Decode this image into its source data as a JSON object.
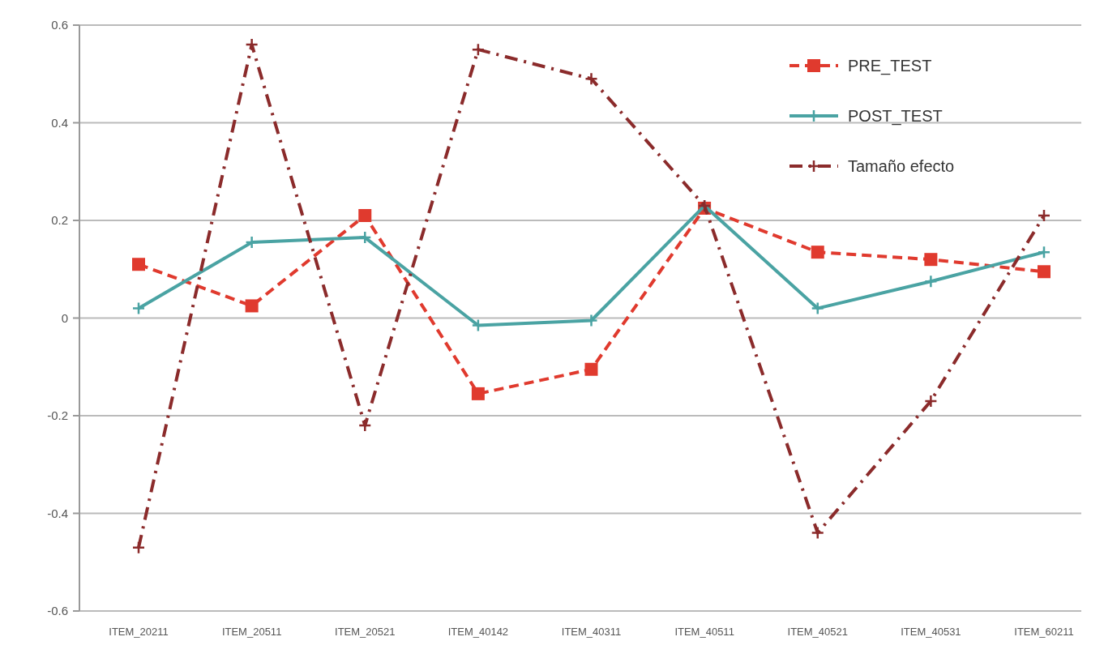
{
  "chart_data": {
    "type": "line",
    "categories": [
      "ITEM_20211",
      "ITEM_20511",
      "ITEM_20521",
      "ITEM_40142",
      "ITEM_40311",
      "ITEM_40511",
      "ITEM_40521",
      "ITEM_40531",
      "ITEM_60211"
    ],
    "series": [
      {
        "name": "PRE_TEST",
        "color": "#e03a2e",
        "marker": "square",
        "line_style": "dashed",
        "values": [
          0.11,
          0.025,
          0.21,
          -0.155,
          -0.105,
          0.225,
          0.135,
          0.12,
          0.095
        ]
      },
      {
        "name": "POST_TEST",
        "color": "#4aa3a3",
        "marker": "cross",
        "line_style": "solid",
        "values": [
          0.02,
          0.155,
          0.165,
          -0.015,
          -0.005,
          0.23,
          0.02,
          0.075,
          0.135
        ]
      },
      {
        "name": "Tamaño efecto",
        "color": "#8b2b2b",
        "marker": "cross",
        "line_style": "dashdot",
        "values": [
          -0.47,
          0.56,
          -0.22,
          0.55,
          0.49,
          0.23,
          -0.44,
          -0.17,
          0.21
        ]
      }
    ],
    "ylim": [
      -0.6,
      0.6
    ],
    "yticks": [
      -0.6,
      -0.4,
      -0.2,
      0,
      0.2,
      0.4,
      0.6
    ],
    "grid": "y",
    "legend": "top right"
  }
}
